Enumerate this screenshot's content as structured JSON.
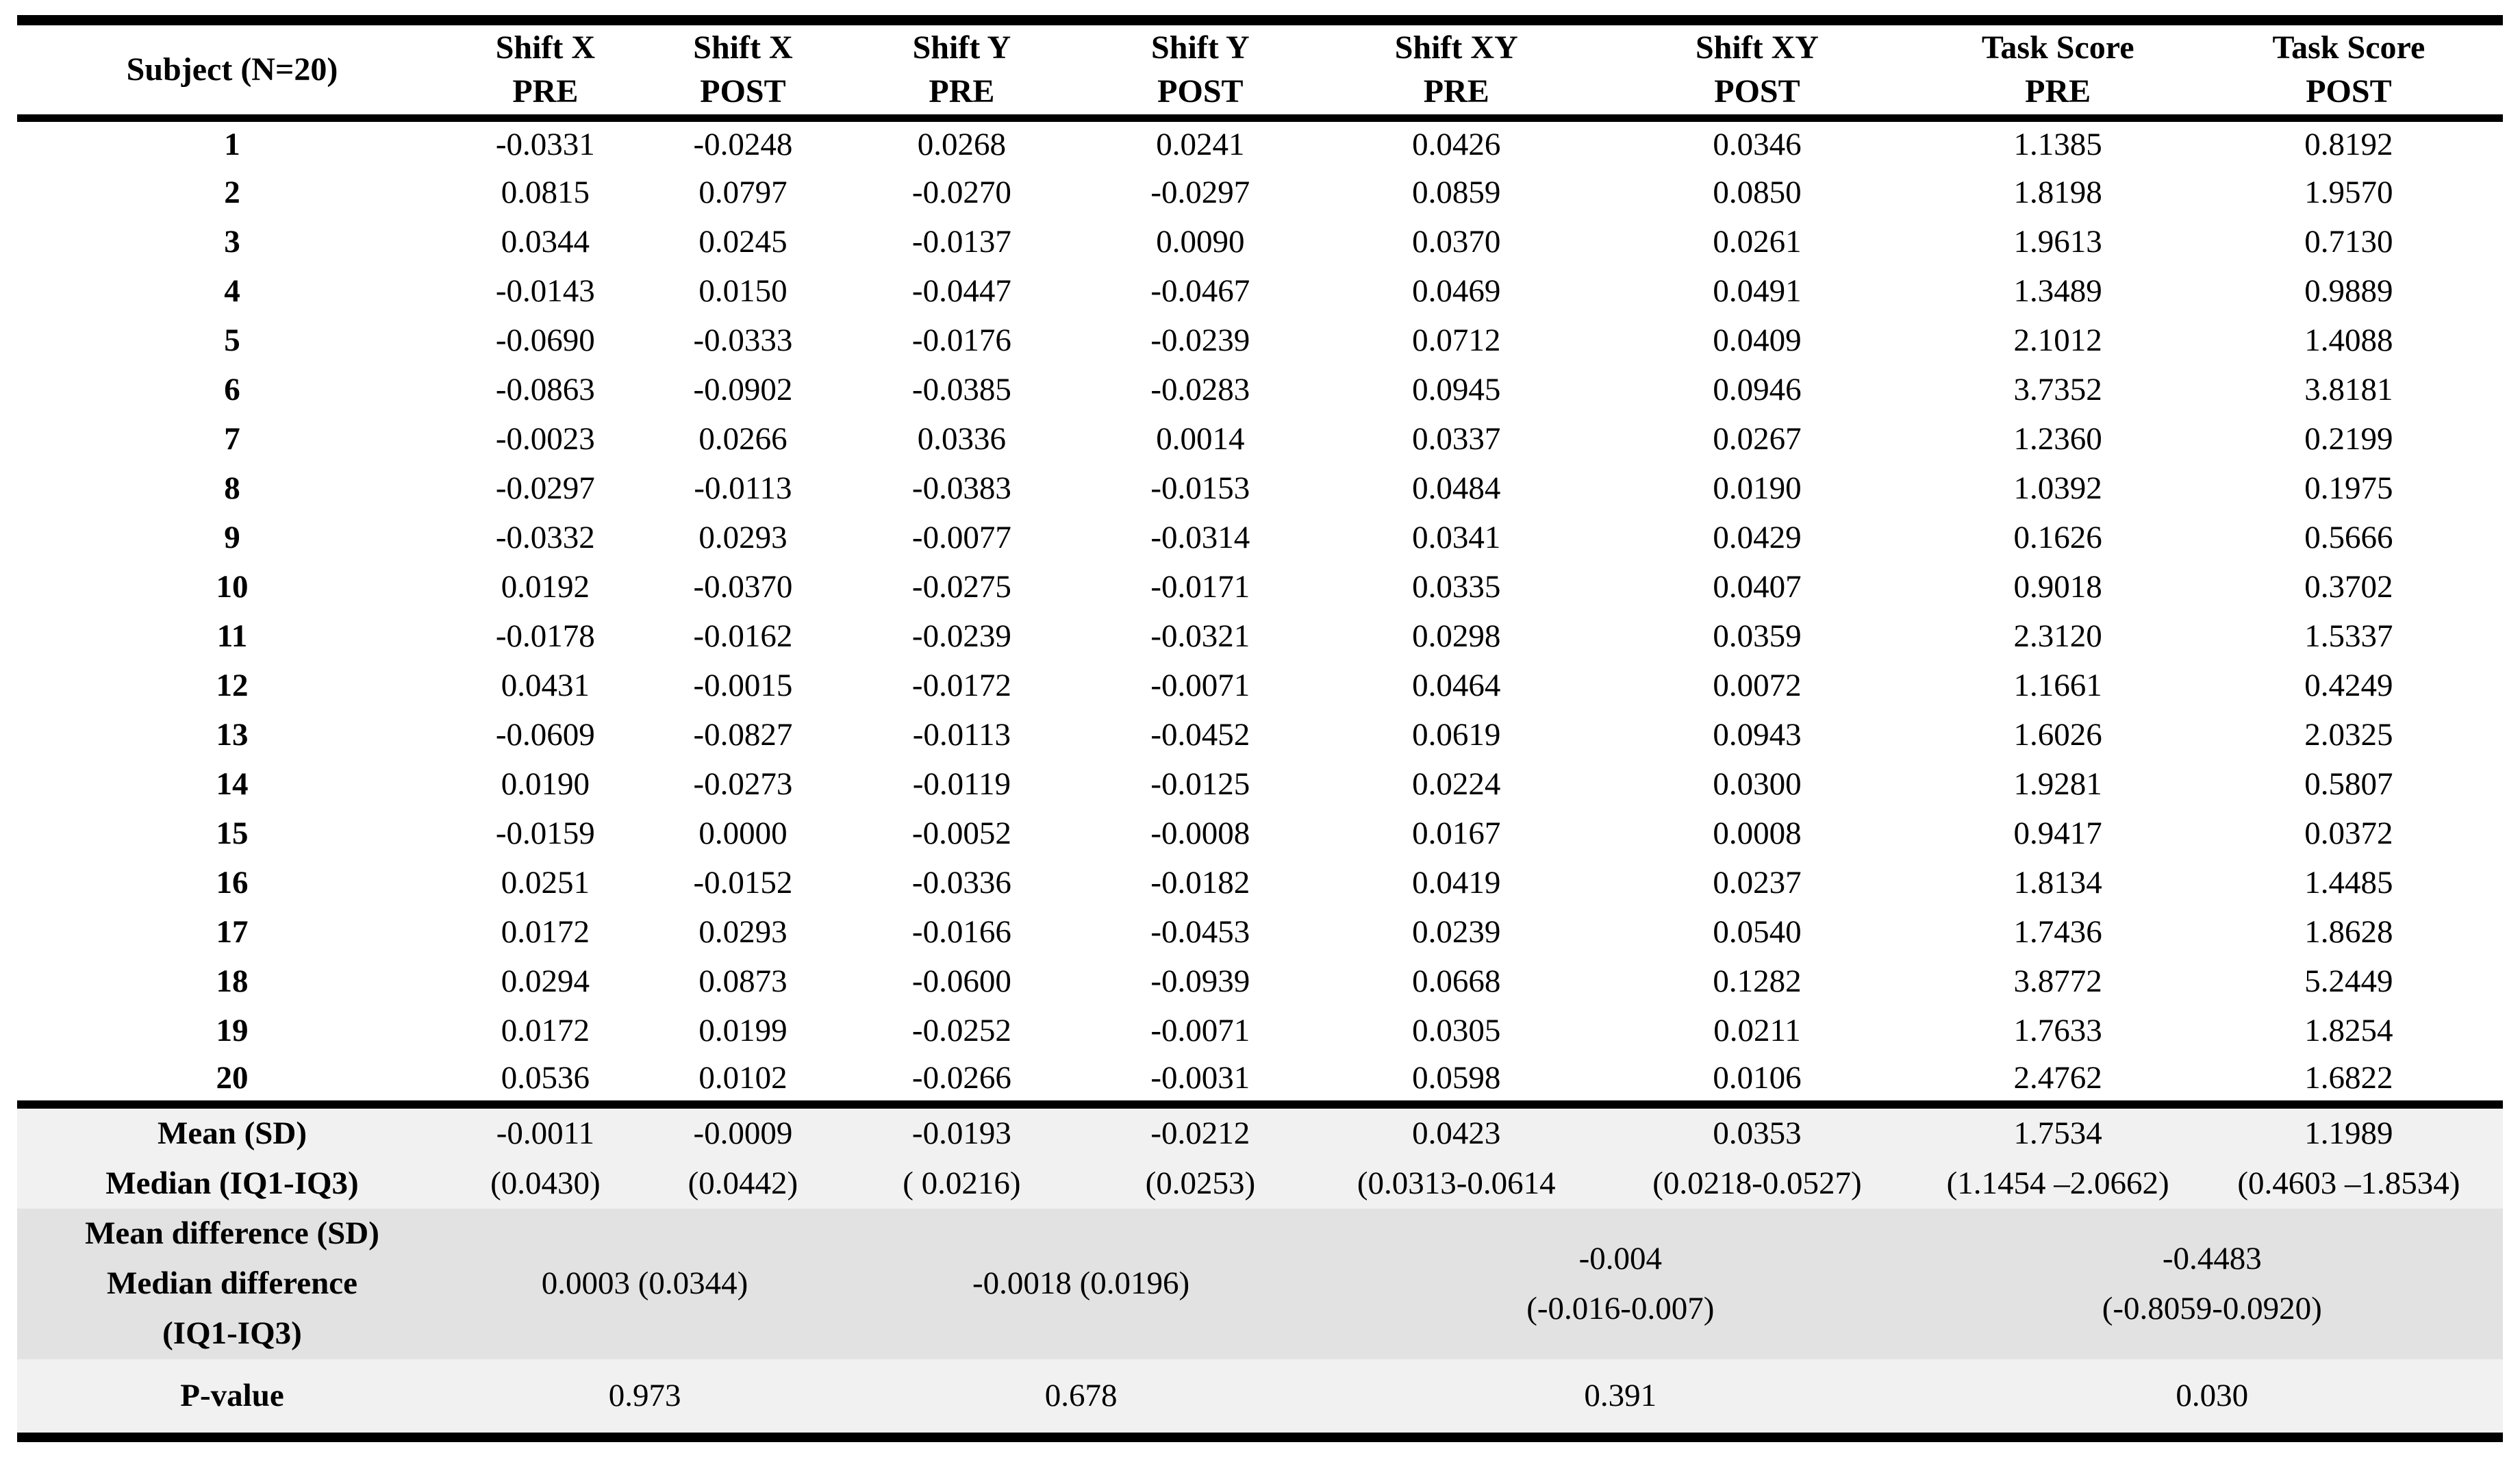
{
  "table": {
    "header": {
      "subject": "Subject (N=20)",
      "columns": [
        {
          "line1": "Shift X",
          "line2": "PRE"
        },
        {
          "line1": "Shift X",
          "line2": "POST"
        },
        {
          "line1": "Shift Y",
          "line2": "PRE"
        },
        {
          "line1": "Shift Y",
          "line2": "POST"
        },
        {
          "line1": "Shift XY",
          "line2": "PRE"
        },
        {
          "line1": "Shift XY",
          "line2": "POST"
        },
        {
          "line1": "Task Score",
          "line2": "PRE"
        },
        {
          "line1": "Task Score",
          "line2": "POST"
        }
      ]
    },
    "rows": [
      {
        "subject": "1",
        "values": [
          "-0.0331",
          "-0.0248",
          "0.0268",
          "0.0241",
          "0.0426",
          "0.0346",
          "1.1385",
          "0.8192"
        ]
      },
      {
        "subject": "2",
        "values": [
          "0.0815",
          "0.0797",
          "-0.0270",
          "-0.0297",
          "0.0859",
          "0.0850",
          "1.8198",
          "1.9570"
        ]
      },
      {
        "subject": "3",
        "values": [
          "0.0344",
          "0.0245",
          "-0.0137",
          "0.0090",
          "0.0370",
          "0.0261",
          "1.9613",
          "0.7130"
        ]
      },
      {
        "subject": "4",
        "values": [
          "-0.0143",
          "0.0150",
          "-0.0447",
          "-0.0467",
          "0.0469",
          "0.0491",
          "1.3489",
          "0.9889"
        ]
      },
      {
        "subject": "5",
        "values": [
          "-0.0690",
          "-0.0333",
          "-0.0176",
          "-0.0239",
          "0.0712",
          "0.0409",
          "2.1012",
          "1.4088"
        ]
      },
      {
        "subject": "6",
        "values": [
          "-0.0863",
          "-0.0902",
          "-0.0385",
          "-0.0283",
          "0.0945",
          "0.0946",
          "3.7352",
          "3.8181"
        ]
      },
      {
        "subject": "7",
        "values": [
          "-0.0023",
          "0.0266",
          "0.0336",
          "0.0014",
          "0.0337",
          "0.0267",
          "1.2360",
          "0.2199"
        ]
      },
      {
        "subject": "8",
        "values": [
          "-0.0297",
          "-0.0113",
          "-0.0383",
          "-0.0153",
          "0.0484",
          "0.0190",
          "1.0392",
          "0.1975"
        ]
      },
      {
        "subject": "9",
        "values": [
          "-0.0332",
          "0.0293",
          "-0.0077",
          "-0.0314",
          "0.0341",
          "0.0429",
          "0.1626",
          "0.5666"
        ]
      },
      {
        "subject": "10",
        "values": [
          "0.0192",
          "-0.0370",
          "-0.0275",
          "-0.0171",
          "0.0335",
          "0.0407",
          "0.9018",
          "0.3702"
        ]
      },
      {
        "subject": "11",
        "values": [
          "-0.0178",
          "-0.0162",
          "-0.0239",
          "-0.0321",
          "0.0298",
          "0.0359",
          "2.3120",
          "1.5337"
        ]
      },
      {
        "subject": "12",
        "values": [
          "0.0431",
          "-0.0015",
          "-0.0172",
          "-0.0071",
          "0.0464",
          "0.0072",
          "1.1661",
          "0.4249"
        ]
      },
      {
        "subject": "13",
        "values": [
          "-0.0609",
          "-0.0827",
          "-0.0113",
          "-0.0452",
          "0.0619",
          "0.0943",
          "1.6026",
          "2.0325"
        ]
      },
      {
        "subject": "14",
        "values": [
          "0.0190",
          "-0.0273",
          "-0.0119",
          "-0.0125",
          "0.0224",
          "0.0300",
          "1.9281",
          "0.5807"
        ]
      },
      {
        "subject": "15",
        "values": [
          "-0.0159",
          "0.0000",
          "-0.0052",
          "-0.0008",
          "0.0167",
          "0.0008",
          "0.9417",
          "0.0372"
        ]
      },
      {
        "subject": "16",
        "values": [
          "0.0251",
          "-0.0152",
          "-0.0336",
          "-0.0182",
          "0.0419",
          "0.0237",
          "1.8134",
          "1.4485"
        ]
      },
      {
        "subject": "17",
        "values": [
          "0.0172",
          "0.0293",
          "-0.0166",
          "-0.0453",
          "0.0239",
          "0.0540",
          "1.7436",
          "1.8628"
        ]
      },
      {
        "subject": "18",
        "values": [
          "0.0294",
          "0.0873",
          "-0.0600",
          "-0.0939",
          "0.0668",
          "0.1282",
          "3.8772",
          "5.2449"
        ]
      },
      {
        "subject": "19",
        "values": [
          "0.0172",
          "0.0199",
          "-0.0252",
          "-0.0071",
          "0.0305",
          "0.0211",
          "1.7633",
          "1.8254"
        ]
      },
      {
        "subject": "20",
        "values": [
          "0.0536",
          "0.0102",
          "-0.0266",
          "-0.0031",
          "0.0598",
          "0.0106",
          "2.4762",
          "1.6822"
        ]
      }
    ],
    "summary": {
      "mean_median": {
        "label_line1": "Mean (SD)",
        "label_line2": "Median (IQ1-IQ3)",
        "cells": [
          {
            "mean": "-0.0011",
            "median": "(0.0430)"
          },
          {
            "mean": "-0.0009",
            "median": "(0.0442)"
          },
          {
            "mean": "-0.0193",
            "median": "( 0.0216)"
          },
          {
            "mean": "-0.0212",
            "median": "(0.0253)"
          },
          {
            "mean": "0.0423",
            "median": "(0.0313-0.0614"
          },
          {
            "mean": "0.0353",
            "median": "(0.0218-0.0527)"
          },
          {
            "mean": "1.7534",
            "median": "(1.1454 –2.0662)"
          },
          {
            "mean": "1.1989",
            "median": "(0.4603 –1.8534)"
          }
        ]
      },
      "difference": {
        "label_lines": [
          "Mean difference (SD)",
          "Median difference",
          "(IQ1-IQ3)"
        ],
        "cells": [
          {
            "lines": [
              "0.0003 (0.0344)"
            ]
          },
          {
            "lines": [
              "-0.0018 (0.0196)"
            ]
          },
          {
            "lines": [
              "-0.004",
              "(-0.016-0.007)"
            ]
          },
          {
            "lines": [
              "-0.4483",
              "(-0.8059-0.0920)"
            ]
          }
        ]
      },
      "p_value": {
        "label": "P-value",
        "cells": [
          "0.973",
          "0.678",
          "0.391",
          "0.030"
        ]
      }
    },
    "colors": {
      "rule": "#000000",
      "summary_light_bg": "#f1f1f1",
      "summary_dark_bg": "#e2e2e2"
    }
  }
}
